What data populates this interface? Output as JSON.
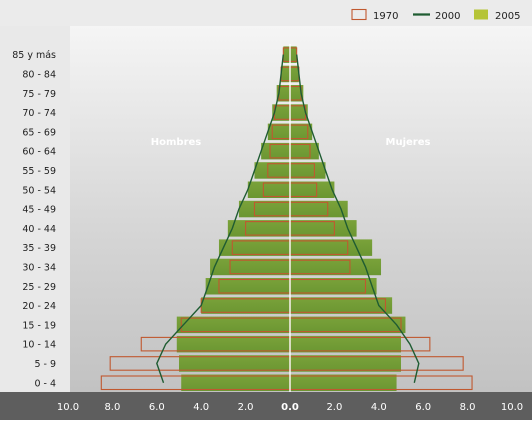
{
  "chart_data": {
    "type": "bar",
    "subtype": "population-pyramid",
    "title": "",
    "xlabel": "",
    "ylabel": "",
    "side_labels": {
      "left": "Hombres",
      "right": "Mujeres"
    },
    "xlim": [
      -10,
      10
    ],
    "x_ticks": [
      "10.0",
      "8.0",
      "6.0",
      "4.0",
      "2.0",
      "0.0",
      "2.0",
      "4.0",
      "6.0",
      "8.0",
      "10.0"
    ],
    "x_tick_values": [
      -10,
      -8,
      -6,
      -4,
      -2,
      0,
      2,
      4,
      6,
      8,
      10
    ],
    "categories": [
      "85 y más",
      "80 - 84",
      "75 - 79",
      "70 - 74",
      "65 - 69",
      "60 - 64",
      "55 - 59",
      "50 - 54",
      "45 - 49",
      "40 - 44",
      "35 - 39",
      "30 - 34",
      "25 - 29",
      "20 - 24",
      "15 - 19",
      "10 - 14",
      "5 - 9",
      "0 - 4"
    ],
    "legend": {
      "position": "top-right"
    },
    "series": [
      {
        "name": "1970",
        "style": "outline-bar",
        "color": "#c0582f",
        "men": [
          0.3,
          0.4,
          0.5,
          0.7,
          0.8,
          0.9,
          1.0,
          1.2,
          1.6,
          2.0,
          2.6,
          2.7,
          3.2,
          4.0,
          4.9,
          6.7,
          8.1,
          8.5
        ],
        "women": [
          0.3,
          0.4,
          0.5,
          0.7,
          0.8,
          0.9,
          1.1,
          1.2,
          1.7,
          2.0,
          2.6,
          2.7,
          3.4,
          4.3,
          5.0,
          6.3,
          7.8,
          8.2
        ]
      },
      {
        "name": "2000",
        "style": "line",
        "color": "#1f5c32",
        "men": [
          0.3,
          0.4,
          0.5,
          0.7,
          1.0,
          1.3,
          1.6,
          1.9,
          2.3,
          2.6,
          3.0,
          3.4,
          3.7,
          4.0,
          4.8,
          5.6,
          6.0,
          5.7
        ],
        "women": [
          0.3,
          0.4,
          0.5,
          0.7,
          1.0,
          1.3,
          1.6,
          1.9,
          2.3,
          2.6,
          3.0,
          3.4,
          3.7,
          4.0,
          4.8,
          5.4,
          5.8,
          5.6
        ]
      },
      {
        "name": "2005",
        "style": "filled-bar",
        "color": "#b5c437",
        "men": [
          0.3,
          0.4,
          0.6,
          0.8,
          1.0,
          1.3,
          1.6,
          1.9,
          2.3,
          2.8,
          3.2,
          3.6,
          3.8,
          4.0,
          5.1,
          5.1,
          5.0,
          4.9
        ],
        "women": [
          0.3,
          0.4,
          0.6,
          0.8,
          1.0,
          1.3,
          1.6,
          2.0,
          2.6,
          3.0,
          3.7,
          4.1,
          3.9,
          4.6,
          5.2,
          5.0,
          5.0,
          4.8
        ]
      }
    ]
  }
}
